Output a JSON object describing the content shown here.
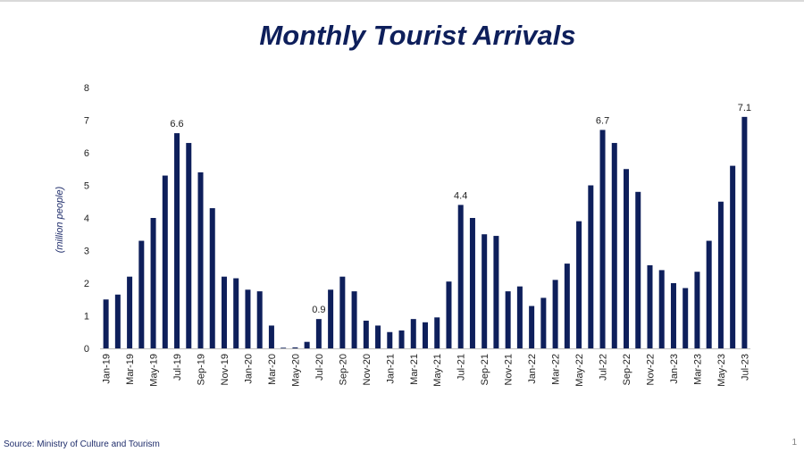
{
  "title": "Monthly Tourist Arrivals",
  "source": "Source: Ministry of Culture and Tourism",
  "page_number": "1",
  "colors": {
    "bar": "#0e1f5b",
    "title": "#0e1f5b",
    "text": "#1f2d6b"
  },
  "chart_data": {
    "type": "bar",
    "ylabel": "(million people)",
    "xlabel": "",
    "ylim": [
      0,
      8
    ],
    "yticks": [
      0,
      1,
      2,
      3,
      4,
      5,
      6,
      7,
      8
    ],
    "grid": false,
    "categories": [
      "Jan-19",
      "Feb-19",
      "Mar-19",
      "Apr-19",
      "May-19",
      "Jun-19",
      "Jul-19",
      "Aug-19",
      "Sep-19",
      "Oct-19",
      "Nov-19",
      "Dec-19",
      "Jan-20",
      "Feb-20",
      "Mar-20",
      "Apr-20",
      "May-20",
      "Jun-20",
      "Jul-20",
      "Aug-20",
      "Sep-20",
      "Oct-20",
      "Nov-20",
      "Dec-20",
      "Jan-21",
      "Feb-21",
      "Mar-21",
      "Apr-21",
      "May-21",
      "Jun-21",
      "Jul-21",
      "Aug-21",
      "Sep-21",
      "Oct-21",
      "Nov-21",
      "Dec-21",
      "Jan-22",
      "Feb-22",
      "Mar-22",
      "Apr-22",
      "May-22",
      "Jun-22",
      "Jul-22",
      "Aug-22",
      "Sep-22",
      "Oct-22",
      "Nov-22",
      "Dec-22",
      "Jan-23",
      "Feb-23",
      "Mar-23",
      "Apr-23",
      "May-23",
      "Jun-23",
      "Jul-23"
    ],
    "tick_labels": [
      "Jan-19",
      "Mar-19",
      "May-19",
      "Jul-19",
      "Sep-19",
      "Nov-19",
      "Jan-20",
      "Mar-20",
      "May-20",
      "Jul-20",
      "Sep-20",
      "Nov-20",
      "Jan-21",
      "Mar-21",
      "May-21",
      "Jul-21",
      "Sep-21",
      "Nov-21",
      "Jan-22",
      "Mar-22",
      "May-22",
      "Jul-22",
      "Sep-22",
      "Nov-22",
      "Jan-23",
      "Mar-23",
      "May-23",
      "Jul-23"
    ],
    "values": [
      1.5,
      1.65,
      2.2,
      3.3,
      4.0,
      5.3,
      6.6,
      6.3,
      5.4,
      4.3,
      2.2,
      2.15,
      1.8,
      1.75,
      0.7,
      0.02,
      0.03,
      0.2,
      0.9,
      1.8,
      2.2,
      1.75,
      0.85,
      0.7,
      0.5,
      0.55,
      0.9,
      0.8,
      0.95,
      2.05,
      4.4,
      4.0,
      3.5,
      3.45,
      1.75,
      1.9,
      1.3,
      1.55,
      2.1,
      2.6,
      3.9,
      5.0,
      6.7,
      6.3,
      5.5,
      4.8,
      2.55,
      2.4,
      2.0,
      1.85,
      2.35,
      3.3,
      4.5,
      5.6,
      7.1
    ],
    "data_labels": [
      {
        "category": "Jul-19",
        "text": "6.6"
      },
      {
        "category": "Jul-20",
        "text": "0.9"
      },
      {
        "category": "Jul-21",
        "text": "4.4"
      },
      {
        "category": "Jul-22",
        "text": "6.7"
      },
      {
        "category": "Jul-23",
        "text": "7.1"
      }
    ]
  }
}
